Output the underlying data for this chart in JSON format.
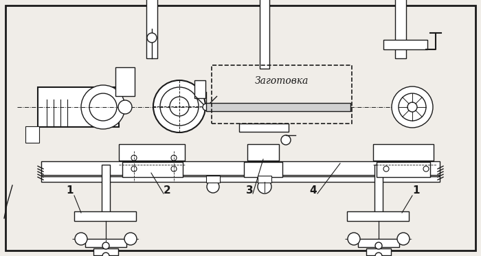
{
  "bg_color": "#f0ede8",
  "border_color": "#1a1a1a",
  "line_color": "#1a1a1a",
  "title": "",
  "label_1a": "1",
  "label_1b": "1",
  "label_2": "2",
  "label_3": "3",
  "label_4": "4",
  "zagotovka": "Заготовка",
  "figsize": [
    7.0,
    3.73
  ],
  "dpi": 100
}
